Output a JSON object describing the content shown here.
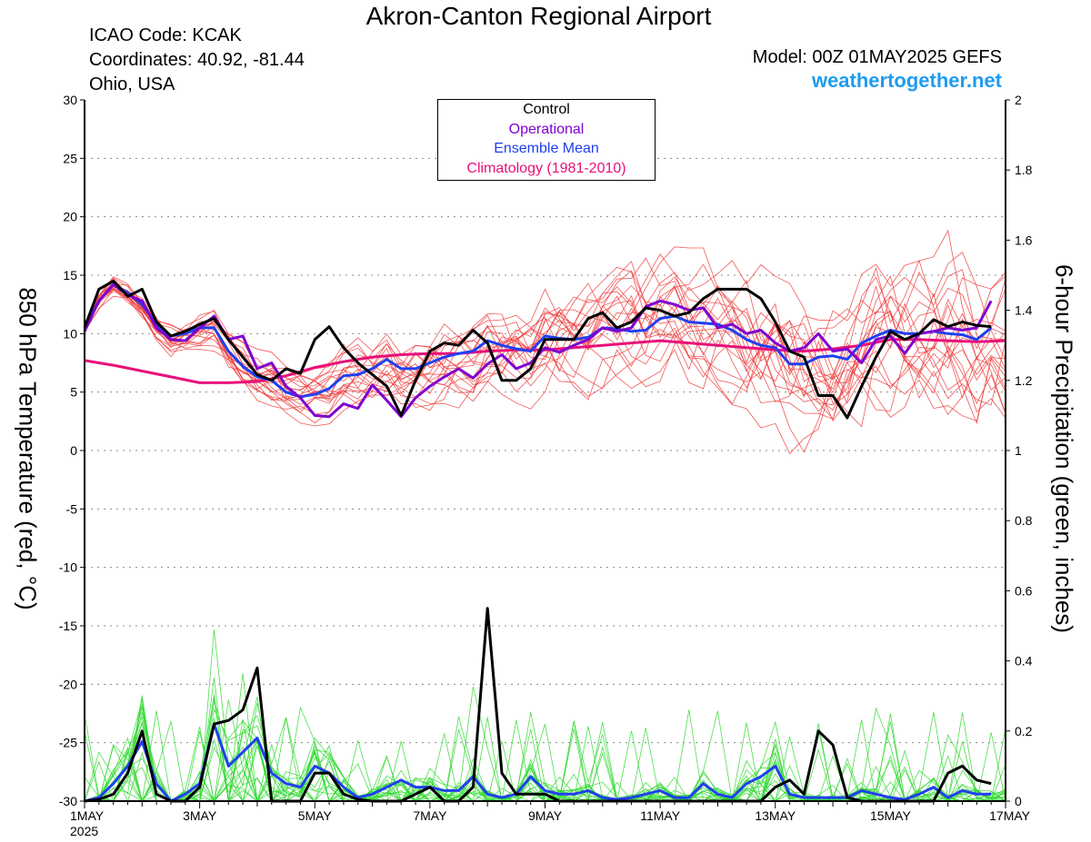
{
  "header": {
    "title": "Akron-Canton Regional Airport",
    "icao": "ICAO Code: KCAK",
    "coords": "Coordinates: 40.92, -81.44",
    "region": "Ohio, USA",
    "model": "Model: 00Z 01MAY2025 GEFS",
    "site": "weathertogether.net"
  },
  "legend": {
    "control": "Control",
    "operational": "Operational",
    "mean": "Ensemble Mean",
    "clim": "Climatology (1981-2010)"
  },
  "colors": {
    "control": "#000000",
    "operational": "#8000d0",
    "mean": "#2040f0",
    "clim": "#e8107a",
    "members_temp": "#f03c3c",
    "members_precip": "#2ed82e",
    "site": "#1e9cf0"
  },
  "chart_data": {
    "type": "line",
    "title": "Akron-Canton Regional Airport",
    "xlabel": "",
    "ylabel": "850 hPa Temperature (red, °C)",
    "y2label": "6-hour Precipitation (green, inches)",
    "xlim": [
      0,
      16
    ],
    "ylim": [
      -30,
      30
    ],
    "y2lim": [
      0,
      2
    ],
    "x_ticks": [
      0,
      2,
      4,
      6,
      8,
      10,
      12,
      14,
      16
    ],
    "x_tick_labels": [
      "1MAY",
      "3MAY",
      "5MAY",
      "7MAY",
      "9MAY",
      "11MAY",
      "13MAY",
      "15MAY",
      "17MAY"
    ],
    "x_year_label": "2025",
    "y_ticks": [
      30,
      25,
      20,
      15,
      10,
      5,
      0,
      -5,
      -10,
      -15,
      -20,
      -25,
      -30
    ],
    "y2_ticks": [
      2,
      1.8,
      1.6,
      1.4,
      1.2,
      1,
      0.8,
      0.6,
      0.4,
      0.2,
      0
    ],
    "grid": true,
    "temperature": {
      "control": [
        [
          0,
          10.5
        ],
        [
          0.25,
          13.8
        ],
        [
          0.5,
          14.5
        ],
        [
          0.75,
          13.2
        ],
        [
          1,
          13.8
        ],
        [
          1.25,
          11
        ],
        [
          1.5,
          9.8
        ],
        [
          1.75,
          10.2
        ],
        [
          2,
          10.8
        ],
        [
          2.25,
          11.3
        ],
        [
          2.5,
          9.5
        ],
        [
          2.75,
          8
        ],
        [
          3,
          6.5
        ],
        [
          3.25,
          6
        ],
        [
          3.5,
          7
        ],
        [
          3.75,
          6.6
        ],
        [
          4,
          9.5
        ],
        [
          4.25,
          10.6
        ],
        [
          4.5,
          8.8
        ],
        [
          4.75,
          7.5
        ],
        [
          5,
          6.5
        ],
        [
          5.25,
          5.5
        ],
        [
          5.5,
          3
        ],
        [
          5.75,
          6
        ],
        [
          6,
          8.5
        ],
        [
          6.25,
          9.2
        ],
        [
          6.5,
          9
        ],
        [
          6.75,
          10.3
        ],
        [
          7,
          9.2
        ],
        [
          7.25,
          6
        ],
        [
          7.5,
          6
        ],
        [
          7.75,
          7
        ],
        [
          8,
          9.5
        ],
        [
          8.25,
          9.5
        ],
        [
          8.5,
          9.5
        ],
        [
          8.75,
          11.3
        ],
        [
          9,
          11.8
        ],
        [
          9.25,
          10.5
        ],
        [
          9.5,
          11
        ],
        [
          9.75,
          12.2
        ],
        [
          10,
          12
        ],
        [
          10.25,
          11.5
        ],
        [
          10.5,
          11.8
        ],
        [
          10.75,
          13
        ],
        [
          11,
          13.8
        ],
        [
          11.25,
          13.8
        ],
        [
          11.5,
          13.8
        ],
        [
          11.75,
          13
        ],
        [
          12,
          11
        ],
        [
          12.25,
          8.5
        ],
        [
          12.5,
          8
        ],
        [
          12.75,
          4.7
        ],
        [
          13,
          4.7
        ],
        [
          13.25,
          2.8
        ],
        [
          13.5,
          5.5
        ],
        [
          13.75,
          8
        ],
        [
          14,
          10.2
        ],
        [
          14.25,
          9.5
        ],
        [
          14.5,
          10
        ],
        [
          14.75,
          11.2
        ],
        [
          15,
          10.6
        ],
        [
          15.25,
          11
        ],
        [
          15.5,
          10.7
        ],
        [
          15.75,
          10.6
        ]
      ],
      "operational": [
        [
          0,
          10.2
        ],
        [
          0.25,
          12.8
        ],
        [
          0.5,
          14.2
        ],
        [
          0.75,
          13.3
        ],
        [
          1,
          12.8
        ],
        [
          1.25,
          10.5
        ],
        [
          1.5,
          9.5
        ],
        [
          1.75,
          9.4
        ],
        [
          2,
          10.5
        ],
        [
          2.25,
          11.5
        ],
        [
          2.5,
          9.5
        ],
        [
          2.75,
          9.8
        ],
        [
          3,
          7
        ],
        [
          3.25,
          7.5
        ],
        [
          3.5,
          5.5
        ],
        [
          3.75,
          4.5
        ],
        [
          4,
          3
        ],
        [
          4.25,
          2.9
        ],
        [
          4.5,
          4
        ],
        [
          4.75,
          3.6
        ],
        [
          5,
          5.6
        ],
        [
          5.25,
          4.3
        ],
        [
          5.5,
          2.9
        ],
        [
          5.75,
          4.5
        ],
        [
          6,
          5.5
        ],
        [
          6.25,
          6.3
        ],
        [
          6.5,
          7
        ],
        [
          6.75,
          6.2
        ],
        [
          7,
          7.4
        ],
        [
          7.25,
          8.2
        ],
        [
          7.5,
          7
        ],
        [
          7.75,
          7.5
        ],
        [
          8,
          8.8
        ],
        [
          8.25,
          8.4
        ],
        [
          8.5,
          9
        ],
        [
          8.75,
          9.5
        ],
        [
          9,
          10.5
        ],
        [
          9.25,
          10.2
        ],
        [
          9.5,
          10.5
        ],
        [
          9.75,
          12.3
        ],
        [
          10,
          12.8
        ],
        [
          10.25,
          12.5
        ],
        [
          10.5,
          12
        ],
        [
          10.75,
          12.2
        ],
        [
          11,
          10.5
        ],
        [
          11.25,
          10.8
        ],
        [
          11.5,
          10
        ],
        [
          11.75,
          10.3
        ],
        [
          12,
          9.2
        ],
        [
          12.25,
          8.5
        ],
        [
          12.5,
          8.8
        ],
        [
          12.75,
          10
        ],
        [
          13,
          8.5
        ],
        [
          13.25,
          8.7
        ],
        [
          13.5,
          7.5
        ],
        [
          13.75,
          9.5
        ],
        [
          14,
          9.8
        ],
        [
          14.25,
          8.3
        ],
        [
          14.5,
          10
        ],
        [
          14.75,
          10.2
        ],
        [
          15,
          10.5
        ],
        [
          15.25,
          10.3
        ],
        [
          15.5,
          10.5
        ],
        [
          15.75,
          12.8
        ]
      ],
      "mean": [
        [
          0,
          10.5
        ],
        [
          0.25,
          12.8
        ],
        [
          0.5,
          14.2
        ],
        [
          0.75,
          13.5
        ],
        [
          1,
          12.5
        ],
        [
          1.25,
          10.8
        ],
        [
          1.5,
          9.8
        ],
        [
          1.75,
          10
        ],
        [
          2,
          10.5
        ],
        [
          2.25,
          10.5
        ],
        [
          2.5,
          8.5
        ],
        [
          2.75,
          7.2
        ],
        [
          3,
          6.3
        ],
        [
          3.25,
          6
        ],
        [
          3.5,
          5
        ],
        [
          3.75,
          4.6
        ],
        [
          4,
          4.8
        ],
        [
          4.25,
          5.3
        ],
        [
          4.5,
          6.4
        ],
        [
          4.75,
          6.5
        ],
        [
          5,
          7
        ],
        [
          5.25,
          7.8
        ],
        [
          5.5,
          7
        ],
        [
          5.75,
          7
        ],
        [
          6,
          7.5
        ],
        [
          6.25,
          8
        ],
        [
          6.5,
          8.3
        ],
        [
          6.75,
          8.5
        ],
        [
          7,
          9.4
        ],
        [
          7.25,
          9
        ],
        [
          7.5,
          8.7
        ],
        [
          7.75,
          8.5
        ],
        [
          8,
          9.8
        ],
        [
          8.25,
          9.6
        ],
        [
          8.5,
          9.5
        ],
        [
          8.75,
          9.7
        ],
        [
          9,
          10.5
        ],
        [
          9.25,
          10.4
        ],
        [
          9.5,
          10.2
        ],
        [
          9.75,
          10.3
        ],
        [
          10,
          11.3
        ],
        [
          10.25,
          11.5
        ],
        [
          10.5,
          11
        ],
        [
          10.75,
          10.9
        ],
        [
          11,
          10.8
        ],
        [
          11.25,
          10.3
        ],
        [
          11.5,
          9.5
        ],
        [
          11.75,
          9
        ],
        [
          12,
          8.8
        ],
        [
          12.25,
          7.4
        ],
        [
          12.5,
          7.4
        ],
        [
          12.75,
          8
        ],
        [
          13,
          8.1
        ],
        [
          13.25,
          7.8
        ],
        [
          13.5,
          9.2
        ],
        [
          13.75,
          9.8
        ],
        [
          14,
          10.3
        ],
        [
          14.25,
          10
        ],
        [
          14.5,
          10
        ],
        [
          14.75,
          10.2
        ],
        [
          15,
          10
        ],
        [
          15.25,
          9.9
        ],
        [
          15.5,
          9.5
        ],
        [
          15.75,
          10.5
        ]
      ],
      "climatology": [
        [
          0,
          7.7
        ],
        [
          0.5,
          7.3
        ],
        [
          1,
          6.8
        ],
        [
          1.5,
          6.3
        ],
        [
          2,
          5.8
        ],
        [
          2.5,
          5.8
        ],
        [
          3,
          5.9
        ],
        [
          3.5,
          6.4
        ],
        [
          4,
          7.1
        ],
        [
          4.5,
          7.6
        ],
        [
          5,
          8
        ],
        [
          5.5,
          8.2
        ],
        [
          6,
          8.3
        ],
        [
          6.5,
          8.3
        ],
        [
          7,
          8.5
        ],
        [
          7.5,
          8.6
        ],
        [
          8,
          8.6
        ],
        [
          8.5,
          8.8
        ],
        [
          9,
          9
        ],
        [
          9.5,
          9.2
        ],
        [
          10,
          9.4
        ],
        [
          10.5,
          9.2
        ],
        [
          11,
          9
        ],
        [
          11.5,
          8.8
        ],
        [
          12,
          8.6
        ],
        [
          12.5,
          8.5
        ],
        [
          13,
          8.7
        ],
        [
          13.5,
          9
        ],
        [
          14,
          9.5
        ],
        [
          14.5,
          9.5
        ],
        [
          15,
          9.4
        ],
        [
          15.5,
          9.3
        ],
        [
          16,
          9.4
        ]
      ]
    },
    "precipitation": {
      "control": [
        [
          0,
          0
        ],
        [
          0.25,
          0.005
        ],
        [
          0.5,
          0.02
        ],
        [
          0.75,
          0.08
        ],
        [
          1,
          0.2
        ],
        [
          1.25,
          0.02
        ],
        [
          1.5,
          0
        ],
        [
          1.75,
          0
        ],
        [
          2,
          0.04
        ],
        [
          2.25,
          0.22
        ],
        [
          2.5,
          0.23
        ],
        [
          2.75,
          0.26
        ],
        [
          3,
          0.38
        ],
        [
          3.25,
          0
        ],
        [
          3.5,
          0
        ],
        [
          3.75,
          0
        ],
        [
          4,
          0.08
        ],
        [
          4.25,
          0.08
        ],
        [
          4.5,
          0.02
        ],
        [
          4.75,
          0.005
        ],
        [
          5,
          0
        ],
        [
          5.25,
          0
        ],
        [
          5.5,
          0
        ],
        [
          5.75,
          0.02
        ],
        [
          6,
          0.04
        ],
        [
          6.25,
          0
        ],
        [
          6.5,
          0
        ],
        [
          6.75,
          0.04
        ],
        [
          7,
          0.55
        ],
        [
          7.25,
          0.08
        ],
        [
          7.5,
          0.02
        ],
        [
          7.75,
          0.02
        ],
        [
          8,
          0.02
        ],
        [
          8.25,
          0
        ],
        [
          8.5,
          0
        ],
        [
          8.75,
          0
        ],
        [
          9,
          0
        ],
        [
          9.25,
          0
        ],
        [
          9.5,
          0
        ],
        [
          9.75,
          0
        ],
        [
          10,
          0
        ],
        [
          10.25,
          0
        ],
        [
          10.5,
          0
        ],
        [
          10.75,
          0
        ],
        [
          11,
          0
        ],
        [
          11.25,
          0
        ],
        [
          11.5,
          0
        ],
        [
          11.75,
          0
        ],
        [
          12,
          0.04
        ],
        [
          12.25,
          0.06
        ],
        [
          12.5,
          0.02
        ],
        [
          12.75,
          0.2
        ],
        [
          13,
          0.16
        ],
        [
          13.25,
          0.01
        ],
        [
          13.5,
          0
        ],
        [
          13.75,
          0
        ],
        [
          14,
          0
        ],
        [
          14.25,
          0
        ],
        [
          14.5,
          0
        ],
        [
          14.75,
          0
        ],
        [
          15,
          0.08
        ],
        [
          15.25,
          0.1
        ],
        [
          15.5,
          0.06
        ],
        [
          15.75,
          0.05
        ]
      ],
      "mean": [
        [
          0,
          0
        ],
        [
          0.25,
          0.01
        ],
        [
          0.5,
          0.05
        ],
        [
          0.75,
          0.1
        ],
        [
          1,
          0.17
        ],
        [
          1.25,
          0.05
        ],
        [
          1.5,
          0
        ],
        [
          1.75,
          0.02
        ],
        [
          2,
          0.05
        ],
        [
          2.25,
          0.22
        ],
        [
          2.5,
          0.1
        ],
        [
          2.75,
          0.14
        ],
        [
          3,
          0.18
        ],
        [
          3.25,
          0.08
        ],
        [
          3.5,
          0.05
        ],
        [
          3.75,
          0.04
        ],
        [
          4,
          0.1
        ],
        [
          4.25,
          0.08
        ],
        [
          4.5,
          0.04
        ],
        [
          4.75,
          0.01
        ],
        [
          5,
          0.02
        ],
        [
          5.25,
          0.04
        ],
        [
          5.5,
          0.06
        ],
        [
          5.75,
          0.04
        ],
        [
          6,
          0.04
        ],
        [
          6.25,
          0.03
        ],
        [
          6.5,
          0.03
        ],
        [
          6.75,
          0.07
        ],
        [
          7,
          0.02
        ],
        [
          7.25,
          0.01
        ],
        [
          7.5,
          0.02
        ],
        [
          7.75,
          0.07
        ],
        [
          8,
          0.03
        ],
        [
          8.25,
          0.02
        ],
        [
          8.5,
          0.02
        ],
        [
          8.75,
          0.03
        ],
        [
          9,
          0.01
        ],
        [
          9.25,
          0.005
        ],
        [
          9.5,
          0.01
        ],
        [
          9.75,
          0.02
        ],
        [
          10,
          0.03
        ],
        [
          10.25,
          0.01
        ],
        [
          10.5,
          0.01
        ],
        [
          10.75,
          0.05
        ],
        [
          11,
          0.02
        ],
        [
          11.25,
          0.01
        ],
        [
          11.5,
          0.05
        ],
        [
          11.75,
          0.07
        ],
        [
          12,
          0.1
        ],
        [
          12.25,
          0.02
        ],
        [
          12.5,
          0.01
        ],
        [
          12.75,
          0.01
        ],
        [
          13,
          0.01
        ],
        [
          13.25,
          0.01
        ],
        [
          13.5,
          0.03
        ],
        [
          13.75,
          0.02
        ],
        [
          14,
          0.01
        ],
        [
          14.25,
          0.005
        ],
        [
          14.5,
          0.02
        ],
        [
          14.75,
          0.04
        ],
        [
          15,
          0.01
        ],
        [
          15.25,
          0.03
        ],
        [
          15.5,
          0.02
        ],
        [
          15.75,
          0.02
        ]
      ]
    }
  }
}
